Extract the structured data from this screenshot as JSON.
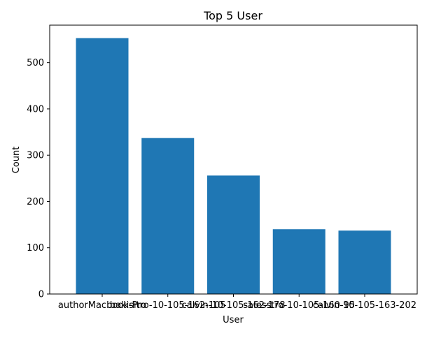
{
  "chart_data": {
    "type": "bar",
    "title": "Top 5 User",
    "xlabel": "User",
    "ylabel": "Count",
    "categories": [
      "authorMacbook-Pro",
      "bakisitro-10-105-162-105",
      "calvin-10-105-162-178",
      "salesstro-10-105-160-95",
      "calvin-10-105-163-202"
    ],
    "values": [
      553,
      337,
      256,
      140,
      137
    ],
    "ylim": [
      0,
      581
    ],
    "yticks": [
      0,
      100,
      200,
      300,
      400,
      500
    ],
    "grid": false,
    "bar_color": "#1f77b4"
  }
}
